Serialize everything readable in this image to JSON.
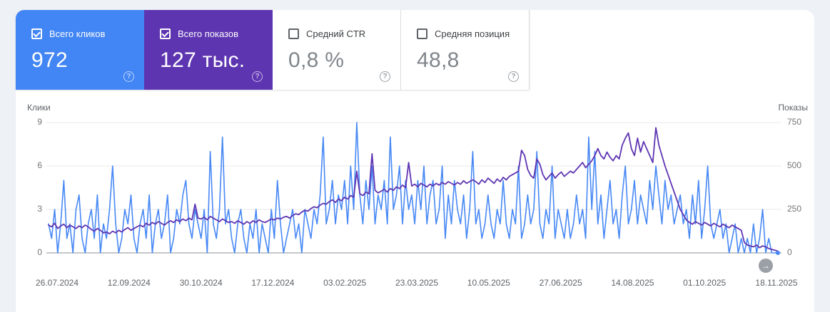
{
  "page": {
    "background": "#eef1f6",
    "panel_background": "#ffffff"
  },
  "cards": [
    {
      "label": "Всего кликов",
      "value": "972",
      "checked": true,
      "color": "#4285f4",
      "help_icon": "?"
    },
    {
      "label": "Всего показов",
      "value": "127 тыс.",
      "checked": true,
      "color": "#5e35b1",
      "help_icon": "?"
    },
    {
      "label": "Средний CTR",
      "value": "0,8 %",
      "checked": false,
      "color": "#ffffff",
      "help_icon": "?"
    },
    {
      "label": "Средняя позиция",
      "value": "48,8",
      "checked": false,
      "color": "#ffffff",
      "help_icon": "?"
    }
  ],
  "controls": {
    "next_arrow": "→"
  },
  "chart_data": {
    "type": "line",
    "grid": true,
    "legend_position": "none",
    "x_labels": [
      "26.07.2024",
      "12.09.2024",
      "30.10.2024",
      "17.12.2024",
      "03.02.2025",
      "23.03.2025",
      "10.05.2025",
      "27.06.2025",
      "14.08.2025",
      "01.10.2025",
      "18.11.2025"
    ],
    "left_axis": {
      "title": "Клики",
      "ticks": [
        "9",
        "6",
        "3",
        "0"
      ],
      "max": 9,
      "min": 0
    },
    "right_axis": {
      "title": "Показы",
      "ticks": [
        "750",
        "500",
        "250",
        "0"
      ],
      "max": 750,
      "min": 0
    },
    "series": [
      {
        "name": "Клики",
        "axis": "left",
        "color": "#4788f5",
        "width": 1.6,
        "values": [
          2,
          1,
          3,
          0,
          2,
          5,
          1,
          2,
          0,
          3,
          4,
          1,
          0,
          2,
          3,
          1,
          4,
          0,
          2,
          1,
          3,
          6,
          2,
          0,
          1,
          3,
          2,
          4,
          1,
          0,
          2,
          3,
          1,
          4,
          0,
          2,
          3,
          1,
          2,
          4,
          0,
          1,
          3,
          2,
          4,
          5,
          2,
          1,
          3,
          2,
          1,
          3,
          0,
          7,
          2,
          1,
          3,
          8,
          2,
          3,
          1,
          0,
          2,
          3,
          1,
          0,
          2,
          1,
          3,
          0,
          2,
          1,
          0,
          3,
          1,
          5,
          2,
          0,
          1,
          2,
          3,
          1,
          2,
          0,
          3,
          2,
          1,
          3,
          2,
          4,
          8,
          2,
          3,
          5,
          2,
          4,
          3,
          5,
          2,
          6,
          3,
          9,
          4,
          2,
          5,
          3,
          6,
          2,
          4,
          3,
          5,
          2,
          8,
          3,
          4,
          6,
          2,
          5,
          3,
          4,
          2,
          5,
          3,
          6,
          2,
          4,
          5,
          2,
          3,
          6,
          1,
          4,
          2,
          5,
          3,
          2,
          4,
          1,
          3,
          7,
          2,
          3,
          1,
          2,
          4,
          2,
          1,
          3,
          2,
          5,
          2,
          1,
          3,
          2,
          6,
          1,
          2,
          4,
          2,
          3,
          7,
          2,
          1,
          3,
          2,
          6,
          1,
          3,
          2,
          1,
          3,
          1,
          2,
          4,
          2,
          3,
          1,
          8,
          3,
          7,
          2,
          4,
          1,
          3,
          5,
          2,
          3,
          1,
          4,
          6,
          2,
          3,
          5,
          2,
          4,
          3,
          2,
          5,
          3,
          6,
          4,
          2,
          5,
          3,
          4,
          2,
          3,
          4,
          2,
          3,
          1,
          4,
          2,
          5,
          1,
          3,
          6,
          2,
          1,
          2,
          3,
          1,
          2,
          0,
          1,
          2,
          0,
          1,
          0,
          1,
          0,
          2,
          0,
          1,
          3,
          0,
          1,
          0,
          0,
          0
        ]
      },
      {
        "name": "Показы",
        "axis": "right",
        "color": "#5e35b1",
        "width": 1.8,
        "values": [
          160,
          150,
          170,
          140,
          155,
          165,
          145,
          160,
          150,
          140,
          155,
          145,
          160,
          150,
          135,
          125,
          140,
          130,
          115,
          120,
          110,
          125,
          115,
          130,
          120,
          135,
          145,
          130,
          140,
          150,
          160,
          150,
          170,
          160,
          175,
          165,
          180,
          170,
          160,
          175,
          185,
          175,
          190,
          180,
          195,
          185,
          200,
          190,
          280,
          200,
          195,
          205,
          190,
          210,
          200,
          190,
          180,
          195,
          185,
          175,
          180,
          170,
          185,
          175,
          165,
          180,
          170,
          185,
          175,
          190,
          180,
          175,
          185,
          195,
          190,
          200,
          195,
          205,
          210,
          200,
          215,
          225,
          220,
          235,
          245,
          240,
          255,
          265,
          260,
          275,
          285,
          280,
          295,
          305,
          290,
          310,
          300,
          320,
          310,
          330,
          320,
          470,
          340,
          330,
          350,
          340,
          570,
          360,
          345,
          355,
          365,
          350,
          370,
          360,
          380,
          370,
          390,
          375,
          520,
          385,
          395,
          380,
          400,
          390,
          380,
          395,
          385,
          400,
          390,
          405,
          395,
          410,
          400,
          390,
          405,
          395,
          415,
          400,
          410,
          420,
          410,
          395,
          420,
          405,
          430,
          415,
          400,
          425,
          410,
          435,
          420,
          440,
          450,
          460,
          470,
          590,
          560,
          480,
          445,
          430,
          540,
          510,
          450,
          420,
          440,
          460,
          430,
          450,
          465,
          440,
          455,
          470,
          460,
          480,
          500,
          520,
          490,
          510,
          530,
          560,
          600,
          560,
          540,
          580,
          550,
          530,
          560,
          540,
          620,
          660,
          690,
          600,
          560,
          660,
          580,
          640,
          600,
          560,
          520,
          720,
          620,
          560,
          500,
          450,
          400,
          350,
          300,
          250,
          220,
          190,
          175,
          165,
          180,
          170,
          160,
          175,
          165,
          155,
          170,
          160,
          150,
          165,
          155,
          145,
          160,
          150,
          140,
          130,
          60,
          45,
          40,
          35,
          45,
          30,
          40,
          35,
          25,
          20,
          15,
          10
        ]
      }
    ]
  }
}
